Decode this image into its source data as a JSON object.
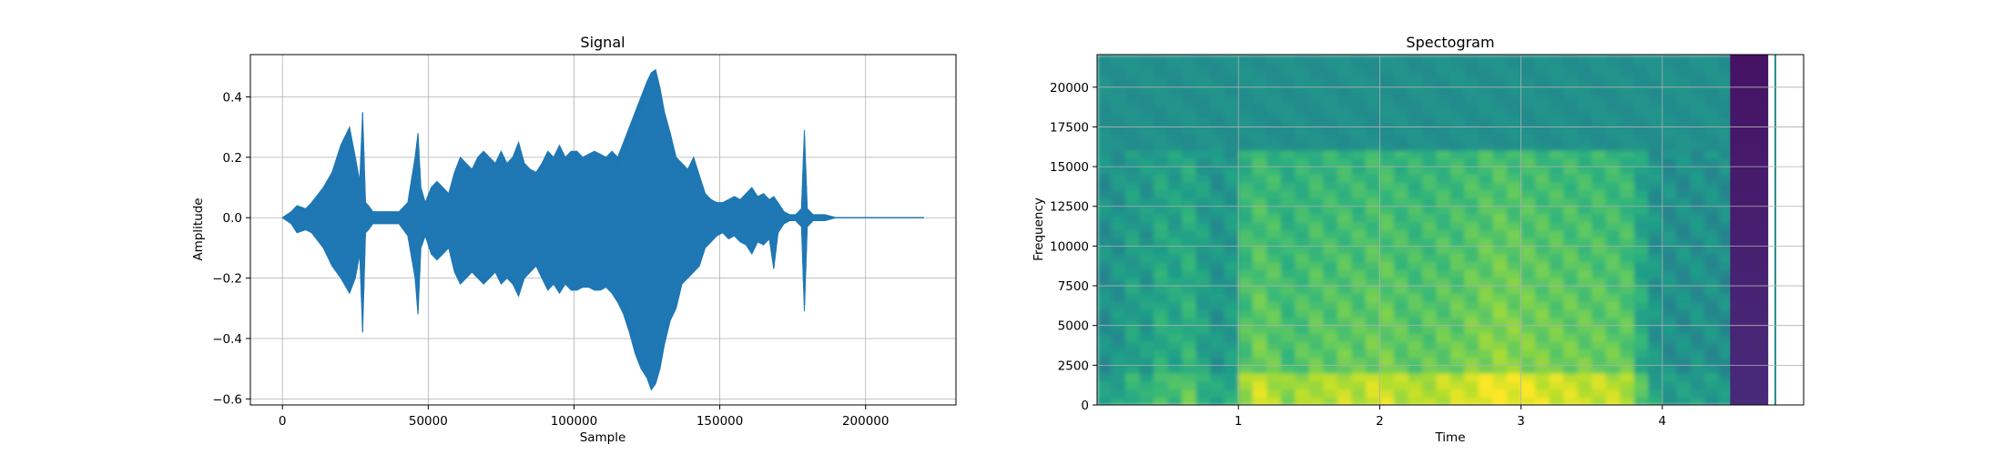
{
  "chart_data": [
    {
      "type": "line",
      "title": "Signal",
      "xlabel": "Sample",
      "ylabel": "Amplitude",
      "xlim": [
        -11000,
        231000
      ],
      "ylim": [
        -0.62,
        0.54
      ],
      "grid": true,
      "color": "#1f77b4",
      "xticks": [
        0,
        50000,
        100000,
        150000,
        200000
      ],
      "xtick_labels": [
        "0",
        "50000",
        "100000",
        "150000",
        "200000"
      ],
      "yticks": [
        -0.6,
        -0.4,
        -0.2,
        0.0,
        0.2,
        0.4
      ],
      "ytick_labels": [
        "−0.6",
        "−0.4",
        "−0.2",
        "0.0",
        "0.2",
        "0.4"
      ],
      "series": [
        {
          "x": [
            0,
            3000,
            5000,
            8000,
            10000,
            14000,
            17000,
            20000,
            23000,
            25000,
            26500,
            27500,
            28500,
            29500,
            31000,
            34000,
            37000,
            40000,
            43000,
            45500,
            46500,
            47500,
            49000,
            51000,
            53000,
            55000,
            57000,
            59000,
            61000,
            63000,
            65000,
            67000,
            69000,
            71000,
            73000,
            75000,
            77000,
            79000,
            81000,
            83000,
            85000,
            87000,
            89000,
            91000,
            93000,
            95000,
            97000,
            99000,
            101000,
            103000,
            105000,
            107000,
            109000,
            111000,
            113000,
            115000,
            117000,
            119000,
            121000,
            123000,
            125000,
            126500,
            128000,
            129500,
            131000,
            133000,
            135000,
            137000,
            139000,
            141000,
            143000,
            145000,
            147000,
            149000,
            151000,
            153000,
            155000,
            157000,
            159000,
            161000,
            163000,
            165000,
            167000,
            168500,
            170000,
            172000,
            174000,
            176000,
            178000,
            179000,
            180000,
            182000,
            186000,
            190000,
            195000,
            200000,
            205000,
            210000,
            215000,
            220000
          ],
          "upper": [
            0.0,
            0.02,
            0.04,
            0.03,
            0.05,
            0.1,
            0.15,
            0.24,
            0.3,
            0.2,
            0.12,
            0.35,
            0.05,
            0.04,
            0.02,
            0.02,
            0.02,
            0.02,
            0.05,
            0.2,
            0.28,
            0.1,
            0.05,
            0.1,
            0.12,
            0.1,
            0.08,
            0.15,
            0.2,
            0.18,
            0.16,
            0.2,
            0.22,
            0.2,
            0.18,
            0.22,
            0.18,
            0.2,
            0.25,
            0.18,
            0.16,
            0.15,
            0.18,
            0.22,
            0.2,
            0.24,
            0.2,
            0.22,
            0.22,
            0.2,
            0.21,
            0.22,
            0.21,
            0.2,
            0.22,
            0.2,
            0.25,
            0.3,
            0.35,
            0.4,
            0.45,
            0.48,
            0.49,
            0.43,
            0.35,
            0.28,
            0.2,
            0.18,
            0.16,
            0.2,
            0.14,
            0.08,
            0.06,
            0.05,
            0.05,
            0.06,
            0.07,
            0.06,
            0.08,
            0.1,
            0.07,
            0.08,
            0.06,
            0.07,
            0.05,
            0.02,
            0.01,
            0.01,
            0.03,
            0.29,
            0.03,
            0.01,
            0.01,
            0.0,
            0.0,
            0.0,
            0.0,
            0.0,
            0.0,
            0.0
          ],
          "lower": [
            0.0,
            -0.02,
            -0.05,
            -0.04,
            -0.05,
            -0.1,
            -0.16,
            -0.2,
            -0.25,
            -0.2,
            -0.12,
            -0.38,
            -0.05,
            -0.04,
            -0.02,
            -0.02,
            -0.02,
            -0.02,
            -0.06,
            -0.2,
            -0.32,
            -0.1,
            -0.06,
            -0.12,
            -0.14,
            -0.12,
            -0.1,
            -0.18,
            -0.22,
            -0.2,
            -0.18,
            -0.2,
            -0.22,
            -0.2,
            -0.18,
            -0.22,
            -0.2,
            -0.22,
            -0.26,
            -0.2,
            -0.18,
            -0.16,
            -0.2,
            -0.24,
            -0.22,
            -0.25,
            -0.22,
            -0.24,
            -0.24,
            -0.23,
            -0.23,
            -0.24,
            -0.24,
            -0.23,
            -0.25,
            -0.28,
            -0.32,
            -0.38,
            -0.45,
            -0.5,
            -0.53,
            -0.57,
            -0.55,
            -0.5,
            -0.42,
            -0.34,
            -0.3,
            -0.22,
            -0.2,
            -0.18,
            -0.16,
            -0.1,
            -0.08,
            -0.06,
            -0.05,
            -0.07,
            -0.06,
            -0.08,
            -0.09,
            -0.12,
            -0.08,
            -0.09,
            -0.07,
            -0.17,
            -0.05,
            -0.02,
            -0.01,
            -0.01,
            -0.03,
            -0.31,
            -0.03,
            -0.01,
            -0.01,
            0.0,
            0.0,
            0.0,
            0.0,
            0.0,
            0.0,
            0.0
          ]
        }
      ]
    },
    {
      "type": "heatmap",
      "title": "Spectogram",
      "xlabel": "Time",
      "ylabel": "Frequency",
      "xlim": [
        0.0,
        5.0
      ],
      "ylim": [
        0,
        22050
      ],
      "grid": true,
      "xticks": [
        1,
        2,
        3,
        4
      ],
      "xtick_labels": [
        "1",
        "2",
        "3",
        "4"
      ],
      "yticks": [
        0,
        2500,
        5000,
        7500,
        10000,
        12500,
        15000,
        17500,
        20000
      ],
      "ytick_labels": [
        "0",
        "2500",
        "5000",
        "7500",
        "10000",
        "12500",
        "15000",
        "17500",
        "20000"
      ],
      "colormap": [
        "#440154",
        "#482777",
        "#3e4989",
        "#31688e",
        "#26828e",
        "#1f9e89",
        "#35b779",
        "#6ece58",
        "#b5de2b",
        "#fde725"
      ],
      "time_bins": [
        0.05,
        0.15,
        0.25,
        0.35,
        0.45,
        0.55,
        0.65,
        0.75,
        0.85,
        0.95,
        1.05,
        1.15,
        1.25,
        1.35,
        1.45,
        1.55,
        1.65,
        1.75,
        1.85,
        1.95,
        2.05,
        2.15,
        2.25,
        2.35,
        2.45,
        2.55,
        2.65,
        2.75,
        2.85,
        2.95,
        3.05,
        3.15,
        3.25,
        3.35,
        3.45,
        3.55,
        3.65,
        3.75,
        3.85,
        3.95,
        4.05,
        4.15,
        4.25,
        4.35,
        4.45
      ],
      "activity": [
        0.3,
        0.35,
        0.45,
        0.4,
        0.55,
        0.5,
        0.6,
        0.45,
        0.35,
        0.4,
        0.75,
        0.85,
        0.8,
        0.7,
        0.75,
        0.8,
        0.78,
        0.82,
        0.8,
        0.84,
        0.86,
        0.8,
        0.78,
        0.8,
        0.82,
        0.84,
        0.88,
        0.92,
        0.95,
        0.93,
        0.9,
        0.88,
        0.86,
        0.85,
        0.84,
        0.83,
        0.82,
        0.8,
        0.55,
        0.35,
        0.3,
        0.3,
        0.32,
        0.3,
        0.28
      ],
      "band_top_hz": 16000,
      "background_level": 0.5,
      "silence_region": {
        "x_start": 4.48,
        "x_end": 4.75,
        "level_low": 0.12,
        "level_high": 0.05
      },
      "edge_line_time": 4.8
    }
  ]
}
